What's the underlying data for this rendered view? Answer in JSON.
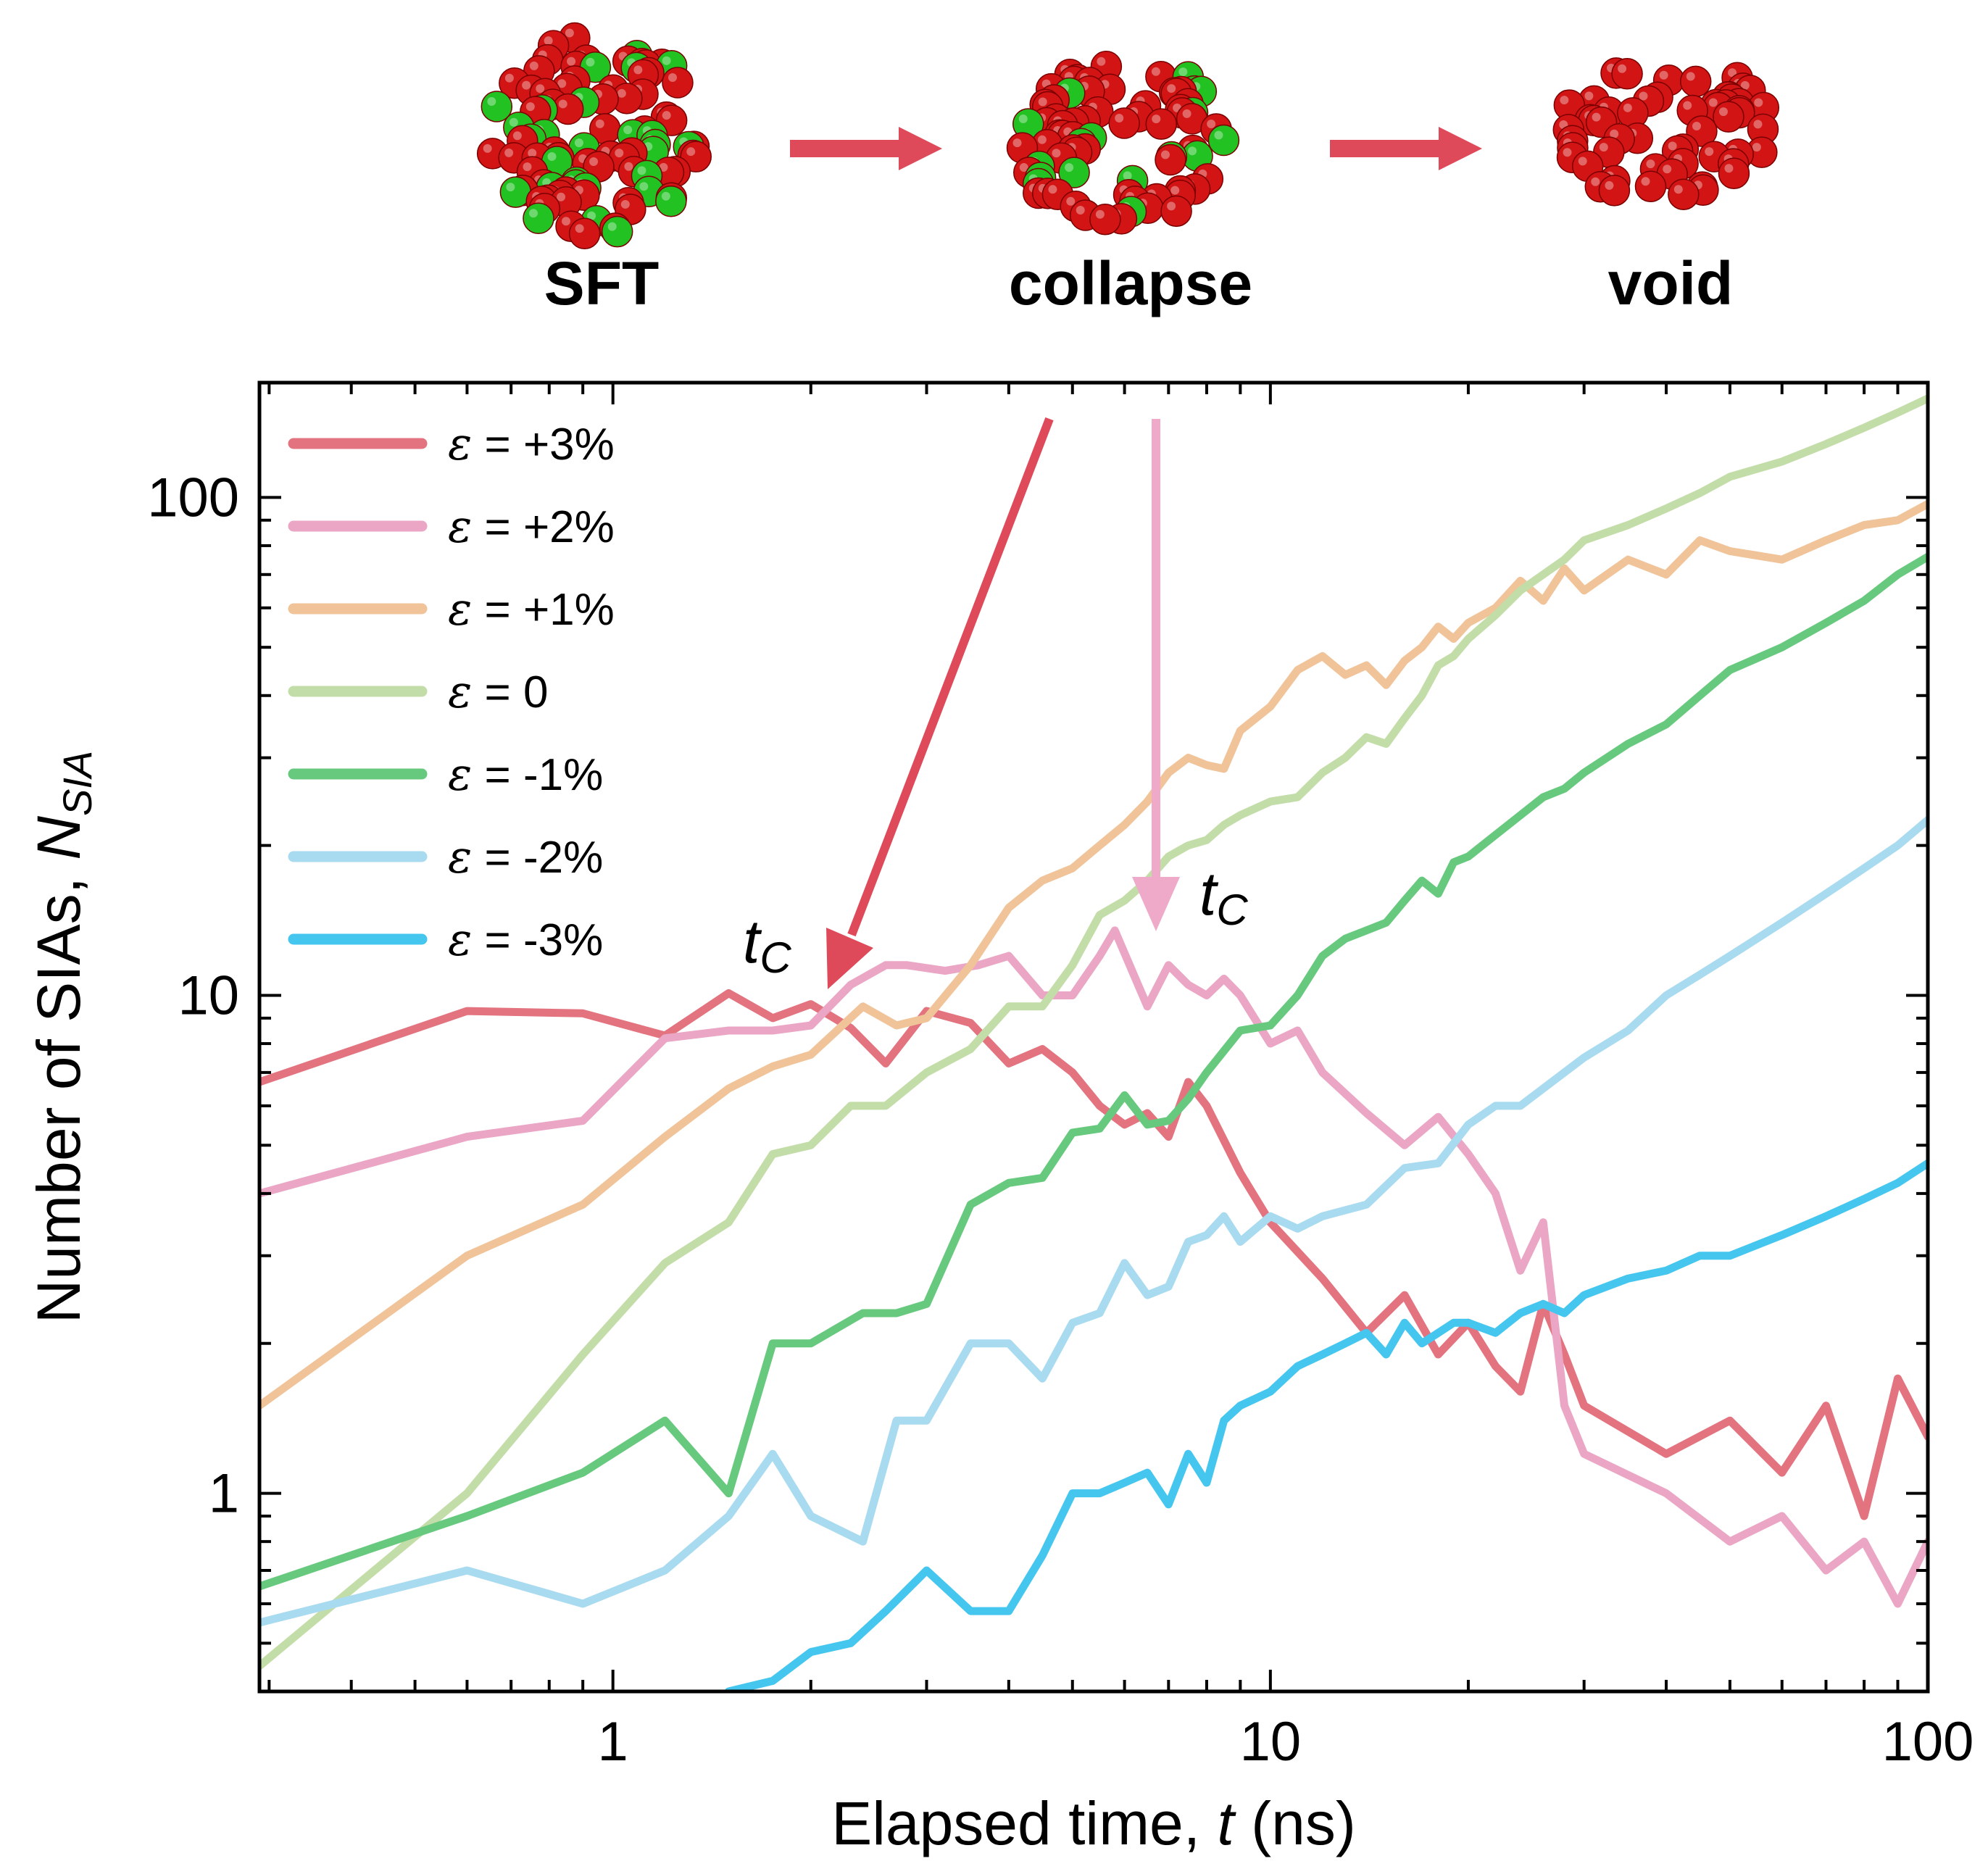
{
  "stages": {
    "items": [
      {
        "label": "SFT"
      },
      {
        "label": "collapse"
      },
      {
        "label": "void"
      }
    ]
  },
  "colors": {
    "atom_red": "#d21414",
    "atom_green": "#22c222",
    "arrow": "#de4a5a",
    "tc_arrow_1": "#de4a5a",
    "tc_arrow_2": "#eeaac8"
  },
  "annotations": {
    "tc_1": "t",
    "tc_2": "t",
    "tc_sub": "C"
  },
  "chart_data": {
    "type": "line",
    "xscale": "log",
    "yscale": "log",
    "xlabel_prefix": "Elapsed time, ",
    "xlabel_var": "t",
    "xlabel_suffix": " (ns)",
    "ylabel_prefix": "Number of SIAs, ",
    "ylabel_var": "N",
    "ylabel_sub": "SIA",
    "xlim": [
      0.29,
      100
    ],
    "ylim": [
      0.4,
      170
    ],
    "xticks": [
      {
        "value": 1,
        "label": "1"
      },
      {
        "value": 10,
        "label": "10"
      },
      {
        "value": 100,
        "label": "100"
      }
    ],
    "yticks": [
      {
        "value": 1,
        "label": "1"
      },
      {
        "value": 10,
        "label": "10"
      },
      {
        "value": 100,
        "label": "100"
      }
    ],
    "legend_position": "top-left",
    "series": [
      {
        "name": "ε = +3%",
        "eps": "ε",
        "label": " = +3%",
        "color": "#e2737f",
        "x": [
          0.29,
          0.6,
          0.9,
          1.2,
          1.5,
          1.75,
          2.0,
          2.3,
          2.6,
          3.0,
          3.5,
          4.0,
          4.5,
          5.0,
          5.5,
          6.0,
          6.5,
          7.0,
          7.5,
          8.0,
          9.0,
          10,
          12,
          14,
          16,
          18,
          20,
          22,
          24,
          26,
          28,
          30,
          40,
          50,
          60,
          70,
          80,
          90,
          100
        ],
        "y": [
          6.7,
          9.3,
          9.2,
          8.3,
          10.1,
          9.0,
          9.6,
          8.6,
          7.3,
          9.3,
          8.8,
          7.3,
          7.8,
          7.0,
          6.0,
          5.5,
          5.8,
          5.2,
          6.7,
          6.0,
          4.4,
          3.5,
          2.7,
          2.1,
          2.5,
          1.9,
          2.2,
          1.8,
          1.6,
          2.4,
          1.9,
          1.5,
          1.2,
          1.4,
          1.1,
          1.5,
          0.9,
          1.7,
          1.3
        ]
      },
      {
        "name": "ε = +2%",
        "eps": "ε",
        "label": " = +2%",
        "color": "#eaa6c4",
        "x": [
          0.29,
          0.6,
          0.9,
          1.2,
          1.5,
          1.75,
          2.0,
          2.3,
          2.6,
          2.8,
          3.2,
          3.6,
          4.0,
          4.5,
          5.0,
          5.5,
          5.8,
          6.5,
          7.0,
          7.5,
          8.0,
          8.5,
          9.0,
          10,
          11,
          12,
          14,
          16,
          18,
          20,
          22,
          24,
          26,
          28,
          30,
          40,
          50,
          60,
          70,
          80,
          90,
          100
        ],
        "y": [
          4.0,
          5.2,
          5.6,
          8.2,
          8.5,
          8.5,
          8.7,
          10.5,
          11.5,
          11.5,
          11.2,
          11.5,
          12.0,
          10.0,
          10.0,
          12.0,
          13.5,
          9.5,
          11.5,
          10.5,
          10.0,
          10.8,
          10.0,
          8.0,
          8.5,
          7.0,
          5.8,
          5.0,
          5.7,
          4.8,
          4.0,
          2.8,
          3.5,
          1.5,
          1.2,
          1.0,
          0.8,
          0.9,
          0.7,
          0.8,
          0.6,
          0.8
        ]
      },
      {
        "name": "ε = +1%",
        "eps": "ε",
        "label": " = +1%",
        "color": "#f0c399",
        "x": [
          0.29,
          0.6,
          0.9,
          1.2,
          1.5,
          1.75,
          2.0,
          2.4,
          2.7,
          3.0,
          3.5,
          4.0,
          4.5,
          5.0,
          5.5,
          6.0,
          6.5,
          7.0,
          7.5,
          8.0,
          8.5,
          9.0,
          10,
          11,
          12,
          13,
          14,
          15,
          16,
          17,
          18,
          19,
          20,
          22,
          24,
          26,
          28,
          30,
          35,
          40,
          45,
          50,
          60,
          70,
          80,
          90,
          100
        ],
        "y": [
          1.5,
          3.0,
          3.8,
          5.2,
          6.5,
          7.2,
          7.6,
          9.5,
          8.7,
          9.0,
          11.5,
          15.0,
          17.0,
          18.0,
          20.0,
          22.0,
          24.5,
          28.0,
          30.0,
          29.0,
          28.5,
          34.0,
          38.0,
          45.0,
          48.0,
          44.0,
          46.0,
          42.0,
          47.0,
          50.0,
          55.0,
          52.0,
          56.0,
          60.0,
          68.0,
          62.0,
          72.0,
          65.0,
          75.0,
          70.0,
          82.0,
          78.0,
          75.0,
          82.0,
          88.0,
          90.0,
          97.0
        ]
      },
      {
        "name": "ε = 0",
        "eps": "ε",
        "label": " = 0",
        "color": "#c3dda8",
        "x": [
          0.29,
          0.6,
          0.9,
          1.2,
          1.5,
          1.75,
          2.0,
          2.3,
          2.6,
          3.0,
          3.5,
          4.0,
          4.5,
          5.0,
          5.5,
          6.0,
          6.5,
          7.0,
          7.5,
          8.0,
          8.5,
          9.0,
          10,
          11,
          12,
          13,
          14,
          15,
          16,
          17,
          18,
          19,
          20,
          22,
          24,
          26,
          28,
          30,
          35,
          40,
          45,
          50,
          60,
          70,
          80,
          90,
          100
        ],
        "y": [
          0.45,
          1.0,
          1.9,
          2.9,
          3.5,
          4.8,
          5.0,
          6.0,
          6.0,
          7.0,
          7.8,
          9.5,
          9.5,
          11.5,
          14.5,
          15.5,
          17.0,
          19.0,
          20.0,
          20.5,
          22.0,
          23.0,
          24.5,
          25.0,
          28.0,
          30.0,
          33.0,
          32.0,
          36.0,
          40.0,
          46.0,
          48.0,
          52.0,
          58.0,
          65.0,
          70.0,
          75.0,
          82.0,
          88.0,
          95.0,
          102.0,
          110.0,
          118.0,
          128.0,
          138.0,
          148.0,
          158.0
        ]
      },
      {
        "name": "ε = -1%",
        "eps": "ε",
        "label": " = -1%",
        "color": "#67c97e",
        "x": [
          0.29,
          0.6,
          0.9,
          1.2,
          1.5,
          1.75,
          2.0,
          2.4,
          2.7,
          3.0,
          3.5,
          4.0,
          4.5,
          5.0,
          5.5,
          6.0,
          6.5,
          7.0,
          7.5,
          8.0,
          9.0,
          10,
          11,
          12,
          13,
          14,
          15,
          16,
          17,
          18,
          19,
          20,
          22,
          24,
          26,
          28,
          30,
          35,
          40,
          45,
          50,
          60,
          70,
          80,
          90,
          100
        ],
        "y": [
          0.65,
          0.9,
          1.1,
          1.4,
          1.0,
          2.0,
          2.0,
          2.3,
          2.3,
          2.4,
          3.8,
          4.2,
          4.3,
          5.3,
          5.4,
          6.3,
          5.5,
          5.6,
          6.2,
          7.0,
          8.5,
          8.7,
          10.0,
          12.0,
          13.0,
          13.5,
          14.0,
          15.5,
          17.0,
          16.0,
          18.5,
          19.0,
          21.0,
          23.0,
          25.0,
          26.0,
          28.0,
          32.0,
          35.0,
          40.0,
          45.0,
          50.0,
          56.0,
          62.0,
          70.0,
          76.0
        ]
      },
      {
        "name": "ε = -2%",
        "eps": "ε",
        "label": " = -2%",
        "color": "#a8daf0",
        "x": [
          0.29,
          0.6,
          0.9,
          1.2,
          1.5,
          1.75,
          2.0,
          2.4,
          2.7,
          3.0,
          3.5,
          4.0,
          4.5,
          5.0,
          5.5,
          6.0,
          6.5,
          7.0,
          7.5,
          8.0,
          8.5,
          9.0,
          10,
          11,
          12,
          14,
          16,
          18,
          20,
          22,
          24,
          26,
          28,
          30,
          35,
          40,
          45,
          50,
          60,
          70,
          80,
          90,
          100
        ],
        "y": [
          0.55,
          0.7,
          0.6,
          0.7,
          0.9,
          1.2,
          0.9,
          0.8,
          1.4,
          1.4,
          2.0,
          2.0,
          1.7,
          2.2,
          2.3,
          2.9,
          2.5,
          2.6,
          3.2,
          3.3,
          3.6,
          3.2,
          3.6,
          3.4,
          3.6,
          3.8,
          4.5,
          4.6,
          5.5,
          6.0,
          6.0,
          6.5,
          7.0,
          7.5,
          8.5,
          10.0,
          11.0,
          12.0,
          14.0,
          16.0,
          18.0,
          20.0,
          22.5
        ]
      },
      {
        "name": "ε = -3%",
        "eps": "ε",
        "label": " = -3%",
        "color": "#45c6ef",
        "x": [
          1.5,
          1.75,
          2.0,
          2.3,
          2.6,
          3.0,
          3.5,
          4.0,
          4.5,
          5.0,
          5.5,
          6.0,
          6.5,
          7.0,
          7.5,
          8.0,
          8.5,
          9.0,
          10,
          11,
          12,
          13,
          14,
          15,
          16,
          17,
          18,
          19,
          20,
          22,
          24,
          26,
          28,
          30,
          35,
          40,
          45,
          50,
          60,
          70,
          80,
          90,
          100
        ],
        "y": [
          0.4,
          0.42,
          0.48,
          0.5,
          0.58,
          0.7,
          0.58,
          0.58,
          0.75,
          1.0,
          1.0,
          1.05,
          1.1,
          0.95,
          1.2,
          1.05,
          1.4,
          1.5,
          1.6,
          1.8,
          1.9,
          2.0,
          2.1,
          1.9,
          2.2,
          2.0,
          2.1,
          2.2,
          2.2,
          2.1,
          2.3,
          2.4,
          2.3,
          2.5,
          2.7,
          2.8,
          3.0,
          3.0,
          3.3,
          3.6,
          3.9,
          4.2,
          4.6
        ]
      }
    ]
  }
}
